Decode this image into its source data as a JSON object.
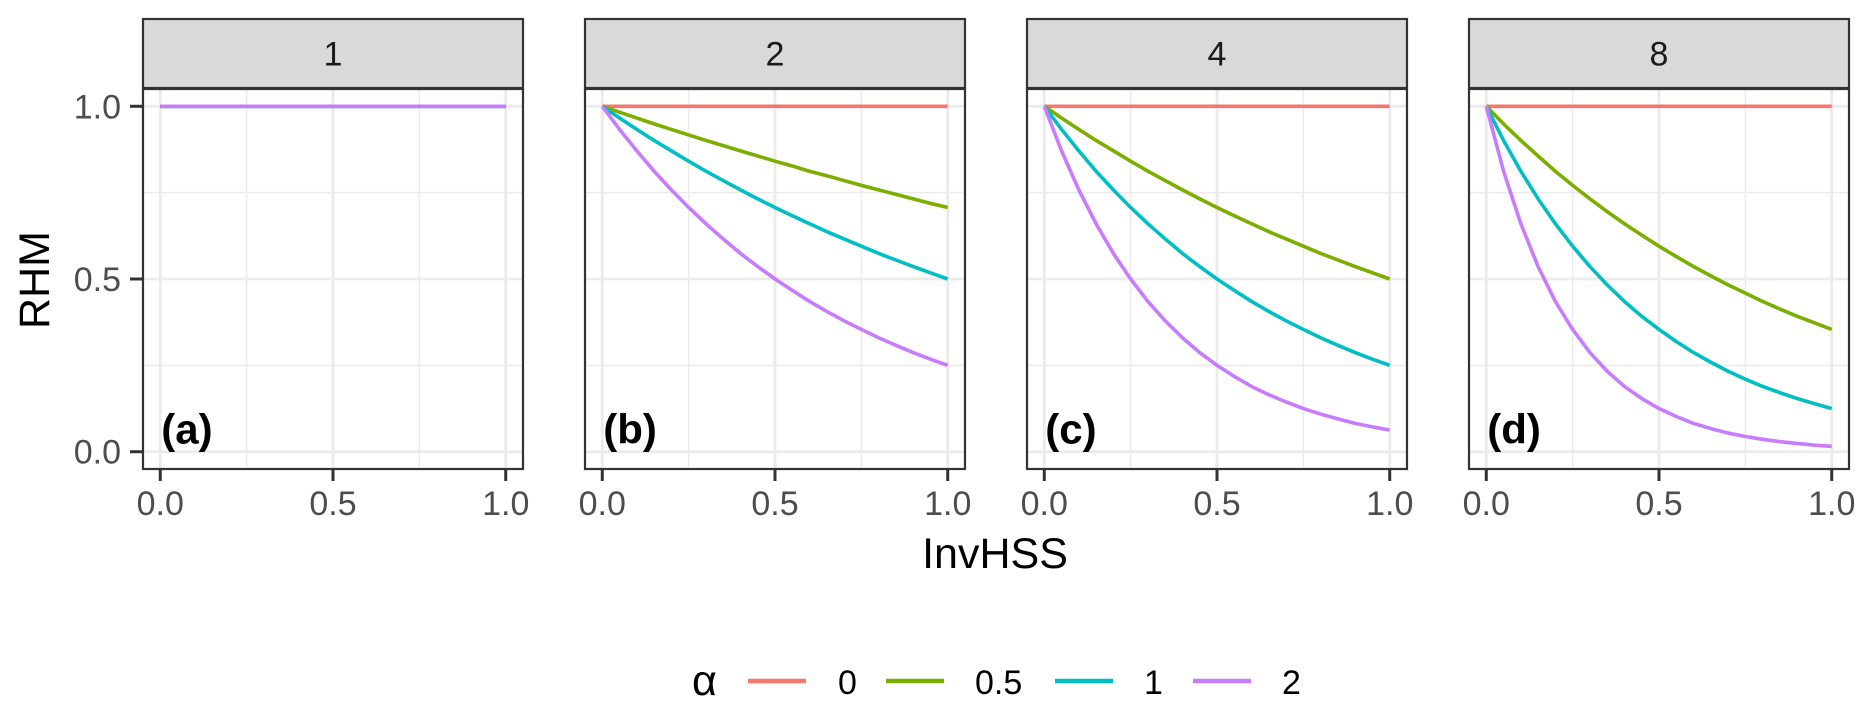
{
  "chart_data": {
    "type": "line",
    "title": "",
    "xlabel": "InvHSS",
    "ylabel": "RHM",
    "xlim": [
      0,
      1
    ],
    "ylim": [
      0,
      1
    ],
    "x_ticks": [
      "0.0",
      "0.5",
      "1.0"
    ],
    "x_tick_values": [
      0,
      0.5,
      1
    ],
    "y_ticks": [
      "0.0",
      "0.5",
      "1.0"
    ],
    "y_tick_values": [
      0,
      0.5,
      1
    ],
    "grid": true,
    "legend": {
      "title": "α",
      "position": "bottom",
      "entries": [
        {
          "label": "0",
          "color": "#F8766D"
        },
        {
          "label": "0.5",
          "color": "#7CAE00"
        },
        {
          "label": "1",
          "color": "#00BFC4"
        },
        {
          "label": "2",
          "color": "#C77CFF"
        }
      ]
    },
    "x": [
      0,
      0.05,
      0.1,
      0.15,
      0.2,
      0.25,
      0.3,
      0.35,
      0.4,
      0.45,
      0.5,
      0.55,
      0.6,
      0.65,
      0.7,
      0.75,
      0.8,
      0.85,
      0.9,
      0.95,
      1.0
    ],
    "panels": [
      {
        "strip": "1",
        "tag": "(a)",
        "series": [
          {
            "name": "0",
            "values": [
              1,
              1,
              1,
              1,
              1,
              1,
              1,
              1,
              1,
              1,
              1,
              1,
              1,
              1,
              1,
              1,
              1,
              1,
              1,
              1,
              1
            ]
          },
          {
            "name": "0.5",
            "values": [
              1,
              1,
              1,
              1,
              1,
              1,
              1,
              1,
              1,
              1,
              1,
              1,
              1,
              1,
              1,
              1,
              1,
              1,
              1,
              1,
              1
            ]
          },
          {
            "name": "1",
            "values": [
              1,
              1,
              1,
              1,
              1,
              1,
              1,
              1,
              1,
              1,
              1,
              1,
              1,
              1,
              1,
              1,
              1,
              1,
              1,
              1,
              1
            ]
          },
          {
            "name": "2",
            "values": [
              1,
              1,
              1,
              1,
              1,
              1,
              1,
              1,
              1,
              1,
              1,
              1,
              1,
              1,
              1,
              1,
              1,
              1,
              1,
              1,
              1
            ]
          }
        ]
      },
      {
        "strip": "2",
        "tag": "(b)",
        "series": [
          {
            "name": "0",
            "values": [
              1,
              1,
              1,
              1,
              1,
              1,
              1,
              1,
              1,
              1,
              1,
              1,
              1,
              1,
              1,
              1,
              1,
              1,
              1,
              1,
              1
            ]
          },
          {
            "name": "0.5",
            "values": [
              1,
              0.983,
              0.966,
              0.949,
              0.933,
              0.917,
              0.901,
              0.886,
              0.871,
              0.856,
              0.841,
              0.827,
              0.812,
              0.799,
              0.785,
              0.771,
              0.758,
              0.745,
              0.732,
              0.719,
              0.707
            ]
          },
          {
            "name": "1",
            "values": [
              1,
              0.966,
              0.933,
              0.901,
              0.871,
              0.841,
              0.812,
              0.785,
              0.758,
              0.732,
              0.707,
              0.683,
              0.66,
              0.637,
              0.616,
              0.595,
              0.574,
              0.555,
              0.536,
              0.518,
              0.5
            ]
          },
          {
            "name": "2",
            "values": [
              1,
              0.933,
              0.871,
              0.812,
              0.758,
              0.707,
              0.66,
              0.616,
              0.574,
              0.536,
              0.5,
              0.467,
              0.435,
              0.406,
              0.379,
              0.354,
              0.33,
              0.308,
              0.287,
              0.268,
              0.25
            ]
          }
        ]
      },
      {
        "strip": "4",
        "tag": "(c)",
        "series": [
          {
            "name": "0",
            "values": [
              1,
              1,
              1,
              1,
              1,
              1,
              1,
              1,
              1,
              1,
              1,
              1,
              1,
              1,
              1,
              1,
              1,
              1,
              1,
              1,
              1
            ]
          },
          {
            "name": "0.5",
            "values": [
              1,
              0.966,
              0.933,
              0.901,
              0.871,
              0.841,
              0.812,
              0.785,
              0.758,
              0.732,
              0.707,
              0.683,
              0.66,
              0.637,
              0.616,
              0.595,
              0.574,
              0.555,
              0.536,
              0.518,
              0.5
            ]
          },
          {
            "name": "1",
            "values": [
              1,
              0.933,
              0.871,
              0.812,
              0.758,
              0.707,
              0.66,
              0.616,
              0.574,
              0.536,
              0.5,
              0.467,
              0.435,
              0.406,
              0.379,
              0.354,
              0.33,
              0.308,
              0.287,
              0.268,
              0.25
            ]
          },
          {
            "name": "2",
            "values": [
              1,
              0.871,
              0.758,
              0.66,
              0.574,
              0.5,
              0.435,
              0.379,
              0.33,
              0.287,
              0.25,
              0.218,
              0.189,
              0.165,
              0.144,
              0.125,
              0.109,
              0.095,
              0.082,
              0.072,
              0.0625
            ]
          }
        ]
      },
      {
        "strip": "8",
        "tag": "(d)",
        "series": [
          {
            "name": "0",
            "values": [
              1,
              1,
              1,
              1,
              1,
              1,
              1,
              1,
              1,
              1,
              1,
              1,
              1,
              1,
              1,
              1,
              1,
              1,
              1,
              1,
              1
            ]
          },
          {
            "name": "0.5",
            "values": [
              1,
              0.949,
              0.901,
              0.856,
              0.812,
              0.771,
              0.732,
              0.695,
              0.66,
              0.627,
              0.595,
              0.565,
              0.536,
              0.509,
              0.483,
              0.459,
              0.435,
              0.413,
              0.392,
              0.373,
              0.354
            ]
          },
          {
            "name": "1",
            "values": [
              1,
              0.901,
              0.812,
              0.732,
              0.66,
              0.595,
              0.536,
              0.483,
              0.435,
              0.392,
              0.354,
              0.319,
              0.287,
              0.259,
              0.233,
              0.21,
              0.189,
              0.171,
              0.154,
              0.139,
              0.125
            ]
          },
          {
            "name": "2",
            "values": [
              1,
              0.812,
              0.66,
              0.536,
              0.435,
              0.354,
              0.287,
              0.233,
              0.189,
              0.154,
              0.125,
              0.102,
              0.082,
              0.067,
              0.054,
              0.044,
              0.036,
              0.029,
              0.024,
              0.019,
              0.0156
            ]
          }
        ]
      }
    ]
  }
}
